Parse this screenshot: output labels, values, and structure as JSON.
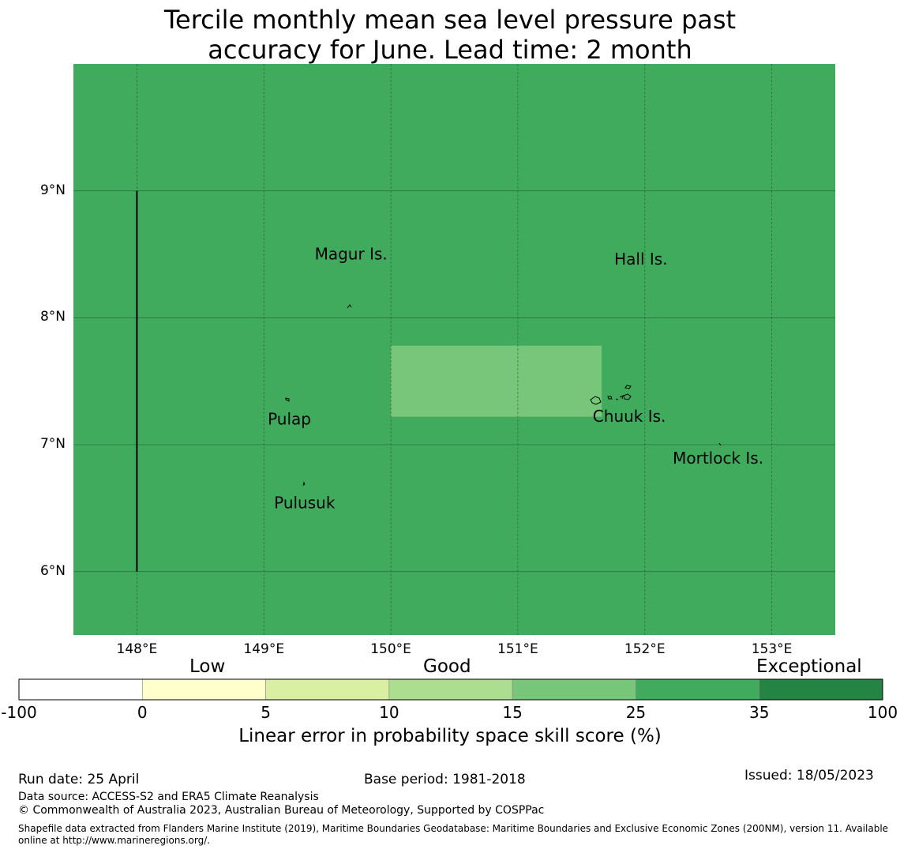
{
  "title": {
    "line1": "Tercile monthly mean sea level pressure past",
    "line2": "accuracy for June. Lead time: 2 month"
  },
  "map": {
    "background_color": "#41ab5d",
    "highlight_color": "#78c679",
    "x_ticks": [
      "148°E",
      "149°E",
      "150°E",
      "151°E",
      "152°E",
      "153°E"
    ],
    "y_ticks": [
      "9°N",
      "8°N",
      "7°N",
      "6°N"
    ],
    "lon_range": [
      147.5,
      153.5
    ],
    "lat_range": [
      5.5,
      10.0
    ],
    "highlight_cell": {
      "lon": [
        150.0,
        151.66
      ],
      "lat": [
        7.22,
        7.78
      ],
      "category": "15-25"
    },
    "boundary_line": {
      "lon": 148.0,
      "lat": [
        6.0,
        9.0
      ]
    },
    "places": [
      {
        "name": "Magur Is.",
        "lon": 149.4,
        "lat": 8.46
      },
      {
        "name": "Hall Is.",
        "lon": 151.76,
        "lat": 8.42
      },
      {
        "name": "Pulap",
        "lon": 149.03,
        "lat": 7.16
      },
      {
        "name": "Chuuk Is.",
        "lon": 151.59,
        "lat": 7.18
      },
      {
        "name": "Mortlock Is.",
        "lon": 152.22,
        "lat": 6.85
      },
      {
        "name": "Pulusuk",
        "lon": 149.08,
        "lat": 6.5
      }
    ]
  },
  "legend": {
    "categories": [
      "Low",
      "Good",
      "Exceptional"
    ],
    "colors": [
      "#ffffff",
      "#ffffcc",
      "#d9f0a3",
      "#addd8e",
      "#78c679",
      "#41ab5d",
      "#238443"
    ],
    "ticks": [
      "-100",
      "0",
      "5",
      "10",
      "15",
      "25",
      "35",
      "100"
    ],
    "label": "Linear error in probability space skill score (%)"
  },
  "footer": {
    "run_date": "Run date: 25 April",
    "base_period": "Base period: 1981-2018",
    "issued": "Issued: 18/05/2023",
    "data_source": "Data source: ACCESS-S2 and ERA5 Climate Reanalysis",
    "copyright": "© Commonwealth of Australia 2023, Australian Bureau of Meteorology, Supported by COSPPac",
    "shapefile_line1": "Shapefile data extracted from Flanders Marine Institute (2019), Maritime Boundaries Geodatabase: Maritime Boundaries and Exclusive Economic Zones (200NM), version 11. Available",
    "shapefile_line2": "online at http://www.marineregions.org/."
  }
}
